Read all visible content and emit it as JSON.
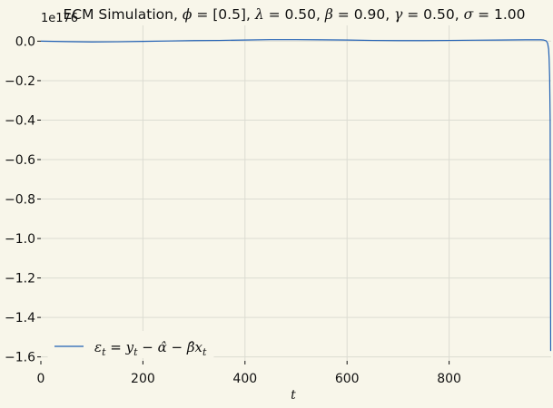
{
  "chart_data": {
    "type": "line",
    "title_parts": [
      "ECM Simulation, ",
      "ϕ",
      " = [0.5], ",
      "λ",
      " = 0.50, ",
      "β",
      " = 0.90, ",
      "γ",
      " = 0.50, ",
      "σ",
      " = 1.00"
    ],
    "xlabel": "t",
    "ylabel": "",
    "offset_label": "1e176",
    "xlim": [
      0,
      1000
    ],
    "ylim": [
      -1.62,
      0.08
    ],
    "xticks": [
      0,
      200,
      400,
      600,
      800
    ],
    "xtick_labels": [
      "0",
      "200",
      "400",
      "600",
      "800"
    ],
    "yticks": [
      0.0,
      -0.2,
      -0.4,
      -0.6,
      -0.8,
      -1.0,
      -1.2,
      -1.4,
      -1.6
    ],
    "ytick_labels": [
      "0.0",
      "−0.2",
      "−0.4",
      "−0.6",
      "−0.8",
      "−1.0",
      "−1.2",
      "−1.4",
      "−1.6"
    ],
    "grid": true,
    "legend_position": "lower-left",
    "line_color": "#1f5fb4",
    "series": [
      {
        "name": "εt = yt − α̂ − β̂xt",
        "name_parts": [
          "ε",
          "t",
          " = ",
          "y",
          "t",
          " − ",
          "α̂",
          " − ",
          "β̂",
          "x",
          "t"
        ],
        "x": [
          0,
          50,
          100,
          150,
          200,
          250,
          300,
          350,
          400,
          450,
          500,
          550,
          600,
          650,
          700,
          750,
          800,
          850,
          900,
          950,
          980,
          985,
          990,
          993,
          995,
          996,
          997,
          998,
          999
        ],
        "values": [
          0.0,
          -0.002,
          -0.004,
          -0.003,
          -0.001,
          0.001,
          0.003,
          0.004,
          0.006,
          0.008,
          0.008,
          0.007,
          0.006,
          0.004,
          0.003,
          0.003,
          0.004,
          0.005,
          0.006,
          0.007,
          0.007,
          0.006,
          0.002,
          -0.01,
          -0.04,
          -0.09,
          -0.18,
          -0.4,
          -1.57
        ]
      }
    ]
  }
}
